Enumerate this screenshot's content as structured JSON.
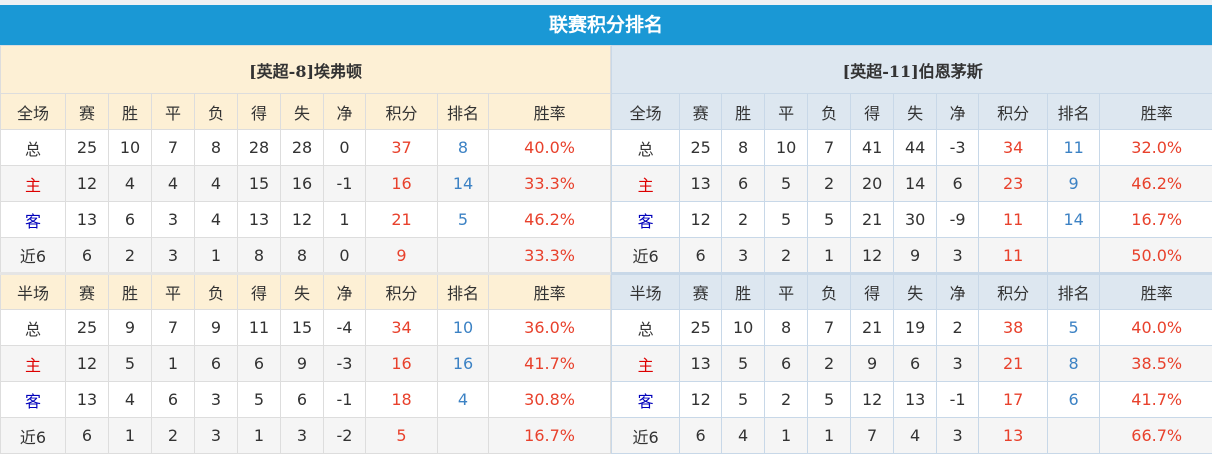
{
  "title": "联赛积分排名",
  "colors": {
    "header": "#1a98d5",
    "points": "#e8412c",
    "rank": "#3c82c4",
    "home": "#dd0000",
    "away": "#0000bb"
  },
  "columns": [
    "赛",
    "胜",
    "平",
    "负",
    "得",
    "失",
    "净",
    "积分",
    "排名",
    "胜率"
  ],
  "teams": [
    {
      "name": "[英超-8]埃弗顿",
      "sections": [
        {
          "label": "全场",
          "rows": [
            [
              "总",
              "25",
              "10",
              "7",
              "8",
              "28",
              "28",
              "0",
              "37",
              "8",
              "40.0%"
            ],
            [
              "主",
              "12",
              "4",
              "4",
              "4",
              "15",
              "16",
              "-1",
              "16",
              "14",
              "33.3%"
            ],
            [
              "客",
              "13",
              "6",
              "3",
              "4",
              "13",
              "12",
              "1",
              "21",
              "5",
              "46.2%"
            ],
            [
              "近6",
              "6",
              "2",
              "3",
              "1",
              "8",
              "8",
              "0",
              "9",
              "",
              "33.3%"
            ]
          ]
        },
        {
          "label": "半场",
          "rows": [
            [
              "总",
              "25",
              "9",
              "7",
              "9",
              "11",
              "15",
              "-4",
              "34",
              "10",
              "36.0%"
            ],
            [
              "主",
              "12",
              "5",
              "1",
              "6",
              "6",
              "9",
              "-3",
              "16",
              "16",
              "41.7%"
            ],
            [
              "客",
              "13",
              "4",
              "6",
              "3",
              "5",
              "6",
              "-1",
              "18",
              "4",
              "30.8%"
            ],
            [
              "近6",
              "6",
              "1",
              "2",
              "3",
              "1",
              "3",
              "-2",
              "5",
              "",
              "16.7%"
            ]
          ]
        }
      ]
    },
    {
      "name": "[英超-11]伯恩茅斯",
      "sections": [
        {
          "label": "全场",
          "rows": [
            [
              "总",
              "25",
              "8",
              "10",
              "7",
              "41",
              "44",
              "-3",
              "34",
              "11",
              "32.0%"
            ],
            [
              "主",
              "13",
              "6",
              "5",
              "2",
              "20",
              "14",
              "6",
              "23",
              "9",
              "46.2%"
            ],
            [
              "客",
              "12",
              "2",
              "5",
              "5",
              "21",
              "30",
              "-9",
              "11",
              "14",
              "16.7%"
            ],
            [
              "近6",
              "6",
              "3",
              "2",
              "1",
              "12",
              "9",
              "3",
              "11",
              "",
              "50.0%"
            ]
          ]
        },
        {
          "label": "半场",
          "rows": [
            [
              "总",
              "25",
              "10",
              "8",
              "7",
              "21",
              "19",
              "2",
              "38",
              "5",
              "40.0%"
            ],
            [
              "主",
              "13",
              "5",
              "6",
              "2",
              "9",
              "6",
              "3",
              "21",
              "8",
              "38.5%"
            ],
            [
              "客",
              "12",
              "5",
              "2",
              "5",
              "12",
              "13",
              "-1",
              "17",
              "6",
              "41.7%"
            ],
            [
              "近6",
              "6",
              "4",
              "1",
              "1",
              "7",
              "4",
              "3",
              "13",
              "",
              "66.7%"
            ]
          ]
        }
      ]
    }
  ]
}
